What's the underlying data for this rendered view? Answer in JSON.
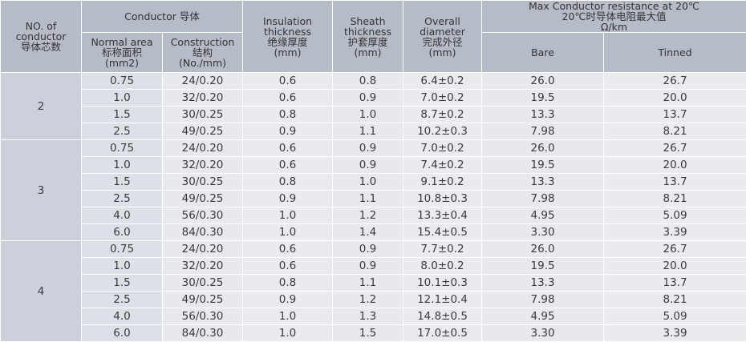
{
  "headers": {
    "cores": [
      "NO. of",
      "conductor",
      "导体芯数"
    ],
    "conductor": "Conductor 导体",
    "area": [
      "Normal area",
      "标称面积",
      "(mm2)"
    ],
    "construction": [
      "Construction",
      "结构",
      "(No./mm)"
    ],
    "insulation": [
      "Insulation",
      "thickness",
      "绝缘厚度",
      "(mm)"
    ],
    "sheath": [
      "Sheath",
      "thickness",
      "护套厚度",
      "(mm)"
    ],
    "diameter": [
      "Overall",
      "diameter",
      "完成外径",
      "(mm)"
    ],
    "resistance": [
      "Max Conductor resistance at 20℃",
      "20℃时导体电阻最大值",
      "Ω/km"
    ],
    "bare": "Bare",
    "tinned": "Tinned"
  },
  "groups": [
    {
      "cores": "2",
      "rows": [
        [
          "0.75",
          "24/0.20",
          "0.6",
          "0.8",
          "6.4±0.2",
          "26.0",
          "26.7"
        ],
        [
          "1.0",
          "32/0.20",
          "0.6",
          "0.9",
          "7.0±0.2",
          "19.5",
          "20.0"
        ],
        [
          "1.5",
          "30/0.25",
          "0.8",
          "1.0",
          "8.7±0.2",
          "13.3",
          "13.7"
        ],
        [
          "2.5",
          "49/0.25",
          "0.9",
          "1.1",
          "10.2±0.3",
          "7.98",
          "8.21"
        ]
      ]
    },
    {
      "cores": "3",
      "rows": [
        [
          "0.75",
          "24/0.20",
          "0.6",
          "0.9",
          "7.0±0.2",
          "26.0",
          "26.7"
        ],
        [
          "1.0",
          "32/0.20",
          "0.6",
          "0.9",
          "7.4±0.2",
          "19.5",
          "20.0"
        ],
        [
          "1.5",
          "30/0.25",
          "0.8",
          "1.0",
          "9.1±0.2",
          "13.3",
          "13.7"
        ],
        [
          "2.5",
          "49/0.25",
          "0.9",
          "1.1",
          "10.8±0.3",
          "7.98",
          "8.21"
        ],
        [
          "4.0",
          "56/0.30",
          "1.0",
          "1.2",
          "13.3±0.4",
          "4.95",
          "5.09"
        ],
        [
          "6.0",
          "84/0.30",
          "1.0",
          "1.4",
          "15.4±0.5",
          "3.30",
          "3.39"
        ]
      ]
    },
    {
      "cores": "4",
      "rows": [
        [
          "0.75",
          "24/0.20",
          "0.6",
          "0.9",
          "7.7±0.2",
          "26.0",
          "26.7"
        ],
        [
          "1.0",
          "32/0.20",
          "0.6",
          "0.9",
          "8.0±0.2",
          "19.5",
          "20.0"
        ],
        [
          "1.5",
          "30/0.25",
          "0.8",
          "1.1",
          "10.1±0.3",
          "13.3",
          "13.7"
        ],
        [
          "2.5",
          "49/0.25",
          "0.9",
          "1.2",
          "12.1±0.4",
          "7.98",
          "8.21"
        ],
        [
          "4.0",
          "56/0.30",
          "1.0",
          "1.3",
          "14.8±0.5",
          "4.95",
          "5.09"
        ],
        [
          "6.0",
          "84/0.30",
          "1.0",
          "1.5",
          "17.0±0.5",
          "3.30",
          "3.39"
        ]
      ]
    }
  ]
}
